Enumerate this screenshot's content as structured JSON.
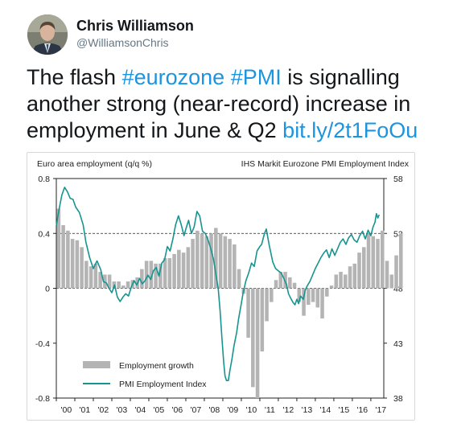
{
  "author": {
    "name": "Chris Williamson",
    "handle": "@WilliamsonChris"
  },
  "tweet": {
    "text_1": "The flash ",
    "hashtag_1": "#eurozone",
    "text_2": " ",
    "hashtag_2": "#PMI",
    "text_3": " is signalling another strong (near-record) increase in employment in June & Q2 ",
    "link": "bit.ly/2t1FoOu"
  },
  "colors": {
    "link": "#1b95e0",
    "bar": "#b4b4b4",
    "line": "#17948f"
  },
  "chart_data": {
    "type": "bar+line",
    "left_title": "Euro area employment (q/q %)",
    "right_title": "IHS Markit Eurozone PMI Employment Index",
    "x_ticks": [
      "'00",
      "'01",
      "'02",
      "'03",
      "'04",
      "'05",
      "'06",
      "'07",
      "'08",
      "'09",
      "'10",
      "'11",
      "'12",
      "'13",
      "'14",
      "'15",
      "'16",
      "'17"
    ],
    "left_axis": {
      "ticks": [
        "0.8",
        "0.4",
        "0",
        "-0.4",
        "-0.8"
      ],
      "values": [
        0.8,
        0.4,
        0,
        -0.4,
        -0.8
      ],
      "ylim": [
        -0.8,
        0.8
      ]
    },
    "right_axis": {
      "ticks": [
        "58",
        "53",
        "48",
        "43",
        "38"
      ],
      "values": [
        58,
        53,
        48,
        43,
        38
      ],
      "ylim": [
        38,
        58
      ]
    },
    "dashed_gridlines": [
      0.4,
      0
    ],
    "legend": {
      "position": "bottom-left",
      "bar_label": "Employment growth",
      "line_label": "PMI Employment Index"
    },
    "employment_growth": {
      "name": "Employment growth",
      "quarters_start": "2000Q1",
      "values": [
        0.58,
        0.46,
        0.42,
        0.36,
        0.35,
        0.3,
        0.2,
        0.16,
        0.18,
        0.12,
        0.1,
        0.1,
        0.05,
        0.05,
        0.02,
        0.05,
        0.06,
        0.08,
        0.14,
        0.2,
        0.2,
        0.18,
        0.18,
        0.22,
        0.22,
        0.25,
        0.28,
        0.26,
        0.3,
        0.36,
        0.42,
        0.4,
        0.38,
        0.4,
        0.44,
        0.4,
        0.38,
        0.36,
        0.32,
        0.14,
        -0.04,
        -0.36,
        -0.72,
        -0.8,
        -0.46,
        -0.24,
        -0.1,
        0.06,
        0.12,
        0.12,
        0.08,
        0.04,
        -0.1,
        -0.2,
        -0.12,
        -0.1,
        -0.14,
        -0.22,
        -0.06,
        0.02,
        0.1,
        0.12,
        0.1,
        0.16,
        0.18,
        0.26,
        0.3,
        0.4,
        0.38,
        0.36,
        0.42,
        0.2,
        0.1,
        0.24,
        0.4
      ]
    },
    "pmi_employment_index": {
      "name": "PMI Employment Index",
      "start": 2000.0,
      "points": [
        [
          2000.0,
          53.7
        ],
        [
          2000.15,
          55.2
        ],
        [
          2000.3,
          56.5
        ],
        [
          2000.45,
          57.2
        ],
        [
          2000.6,
          56.8
        ],
        [
          2000.75,
          56.2
        ],
        [
          2000.9,
          56.1
        ],
        [
          2001.05,
          55.4
        ],
        [
          2001.25,
          54.9
        ],
        [
          2001.45,
          53.8
        ],
        [
          2001.6,
          52.2
        ],
        [
          2001.8,
          50.8
        ],
        [
          2002.0,
          49.8
        ],
        [
          2002.2,
          50.5
        ],
        [
          2002.4,
          49.7
        ],
        [
          2002.55,
          48.6
        ],
        [
          2002.7,
          48.5
        ],
        [
          2002.85,
          48.0
        ],
        [
          2003.0,
          47.6
        ],
        [
          2003.15,
          48.3
        ],
        [
          2003.3,
          47.2
        ],
        [
          2003.45,
          46.8
        ],
        [
          2003.6,
          47.2
        ],
        [
          2003.75,
          47.5
        ],
        [
          2003.9,
          47.3
        ],
        [
          2004.05,
          48.1
        ],
        [
          2004.2,
          48.7
        ],
        [
          2004.35,
          48.3
        ],
        [
          2004.5,
          48.9
        ],
        [
          2004.65,
          48.4
        ],
        [
          2004.8,
          48.7
        ],
        [
          2004.95,
          49.2
        ],
        [
          2005.1,
          48.8
        ],
        [
          2005.25,
          49.6
        ],
        [
          2005.4,
          49.9
        ],
        [
          2005.55,
          49.1
        ],
        [
          2005.7,
          50.3
        ],
        [
          2005.85,
          50.6
        ],
        [
          2006.0,
          51.8
        ],
        [
          2006.15,
          51.4
        ],
        [
          2006.3,
          52.5
        ],
        [
          2006.45,
          53.8
        ],
        [
          2006.6,
          54.6
        ],
        [
          2006.75,
          53.8
        ],
        [
          2006.9,
          52.8
        ],
        [
          2007.0,
          53.4
        ],
        [
          2007.15,
          54.2
        ],
        [
          2007.3,
          53.0
        ],
        [
          2007.45,
          53.6
        ],
        [
          2007.6,
          55.0
        ],
        [
          2007.75,
          54.6
        ],
        [
          2007.9,
          53.2
        ],
        [
          2008.05,
          53.0
        ],
        [
          2008.2,
          52.4
        ],
        [
          2008.35,
          51.6
        ],
        [
          2008.5,
          50.6
        ],
        [
          2008.65,
          49.0
        ],
        [
          2008.75,
          48.0
        ],
        [
          2008.85,
          46.0
        ],
        [
          2008.95,
          43.5
        ],
        [
          2009.05,
          41.2
        ],
        [
          2009.12,
          40.0
        ],
        [
          2009.2,
          39.6
        ],
        [
          2009.3,
          39.6
        ],
        [
          2009.38,
          40.5
        ],
        [
          2009.5,
          41.6
        ],
        [
          2009.6,
          42.7
        ],
        [
          2009.75,
          44.0
        ],
        [
          2009.85,
          45.2
        ],
        [
          2010.0,
          46.6
        ],
        [
          2010.1,
          47.6
        ],
        [
          2010.25,
          48.7
        ],
        [
          2010.4,
          49.4
        ],
        [
          2010.55,
          50.3
        ],
        [
          2010.7,
          50.0
        ],
        [
          2010.85,
          51.4
        ],
        [
          2011.0,
          51.8
        ],
        [
          2011.1,
          52.0
        ],
        [
          2011.25,
          53.0
        ],
        [
          2011.35,
          53.4
        ],
        [
          2011.5,
          52.0
        ],
        [
          2011.6,
          51.2
        ],
        [
          2011.7,
          50.4
        ],
        [
          2011.85,
          49.8
        ],
        [
          2012.0,
          49.6
        ],
        [
          2012.15,
          49.4
        ],
        [
          2012.3,
          48.9
        ],
        [
          2012.45,
          48.3
        ],
        [
          2012.55,
          47.5
        ],
        [
          2012.7,
          47.0
        ],
        [
          2012.8,
          46.7
        ],
        [
          2012.9,
          46.5
        ],
        [
          2013.0,
          47.0
        ],
        [
          2013.1,
          46.6
        ],
        [
          2013.2,
          47.3
        ],
        [
          2013.35,
          47.0
        ],
        [
          2013.45,
          47.8
        ],
        [
          2013.55,
          48.2
        ],
        [
          2013.7,
          48.6
        ],
        [
          2013.85,
          49.2
        ],
        [
          2014.0,
          49.8
        ],
        [
          2014.15,
          50.3
        ],
        [
          2014.3,
          50.8
        ],
        [
          2014.45,
          51.2
        ],
        [
          2014.6,
          51.5
        ],
        [
          2014.75,
          50.8
        ],
        [
          2014.9,
          51.6
        ],
        [
          2015.05,
          51.0
        ],
        [
          2015.2,
          51.6
        ],
        [
          2015.35,
          52.2
        ],
        [
          2015.5,
          52.5
        ],
        [
          2015.65,
          52.0
        ],
        [
          2015.8,
          52.6
        ],
        [
          2015.95,
          52.9
        ],
        [
          2016.1,
          52.4
        ],
        [
          2016.25,
          52.2
        ],
        [
          2016.4,
          52.8
        ],
        [
          2016.55,
          53.2
        ],
        [
          2016.7,
          52.5
        ],
        [
          2016.85,
          53.3
        ],
        [
          2017.0,
          52.8
        ],
        [
          2017.12,
          53.6
        ],
        [
          2017.22,
          54.0
        ],
        [
          2017.3,
          54.8
        ],
        [
          2017.38,
          54.4
        ],
        [
          2017.45,
          54.7
        ]
      ]
    }
  }
}
